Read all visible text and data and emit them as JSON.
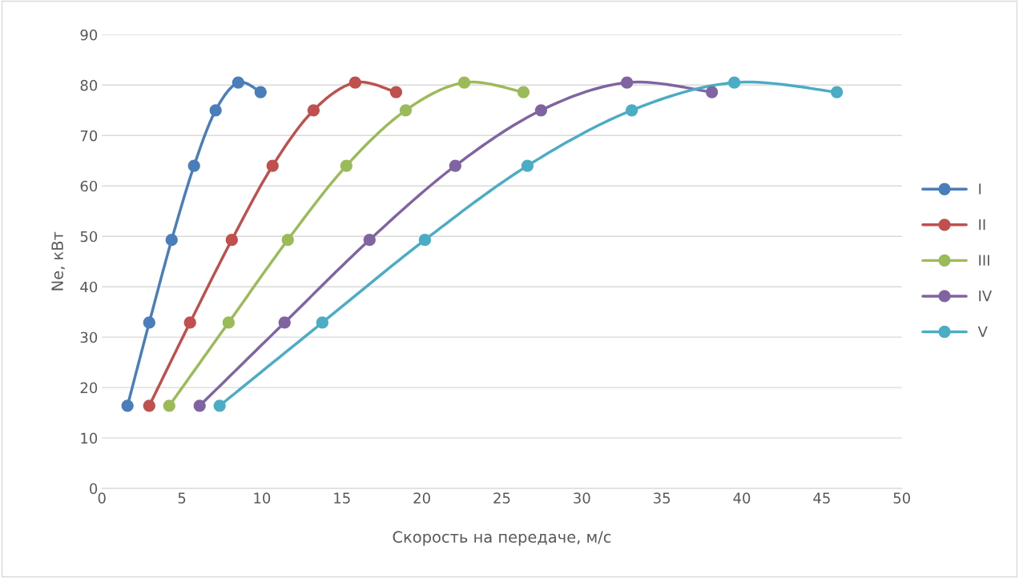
{
  "chart_data": {
    "type": "line",
    "xlabel": "Скорость на передаче, м/с",
    "ylabel": "Ne, кВт",
    "xlim": [
      0,
      50
    ],
    "xticks": [
      0,
      5,
      10,
      15,
      20,
      25,
      30,
      35,
      40,
      45,
      50
    ],
    "ylim": [
      0,
      90
    ],
    "yticks": [
      0,
      10,
      20,
      30,
      40,
      50,
      60,
      70,
      80,
      90
    ],
    "grid": "y",
    "legend": "right",
    "marker": "circle",
    "line_style": "solid",
    "series": [
      {
        "name": "I",
        "color": "#4a7ebb",
        "x": [
          1.6,
          2.96,
          4.36,
          5.76,
          7.11,
          8.52,
          9.92
        ],
        "values": [
          16.4,
          32.9,
          49.3,
          64,
          75,
          80.5,
          78.6
        ]
      },
      {
        "name": "II",
        "color": "#c0504d",
        "x": [
          2.96,
          5.51,
          8.12,
          10.67,
          13.23,
          15.83,
          18.39
        ],
        "values": [
          16.4,
          32.9,
          49.3,
          64,
          75,
          80.5,
          78.6
        ]
      },
      {
        "name": "III",
        "color": "#9bbb59",
        "x": [
          4.21,
          7.92,
          11.62,
          15.28,
          18.99,
          22.65,
          26.35
        ],
        "values": [
          16.4,
          32.9,
          49.3,
          64,
          75,
          80.5,
          78.6
        ]
      },
      {
        "name": "IV",
        "color": "#8064a2",
        "x": [
          6.11,
          11.42,
          16.73,
          22.09,
          27.45,
          32.82,
          38.13
        ],
        "values": [
          16.4,
          32.9,
          49.3,
          64,
          75,
          80.5,
          78.6
        ]
      },
      {
        "name": "V",
        "color": "#4bacc6",
        "x": [
          7.36,
          13.78,
          20.19,
          26.6,
          33.12,
          39.53,
          45.94
        ],
        "values": [
          16.4,
          32.9,
          49.3,
          64,
          75,
          80.5,
          78.6
        ]
      }
    ]
  }
}
